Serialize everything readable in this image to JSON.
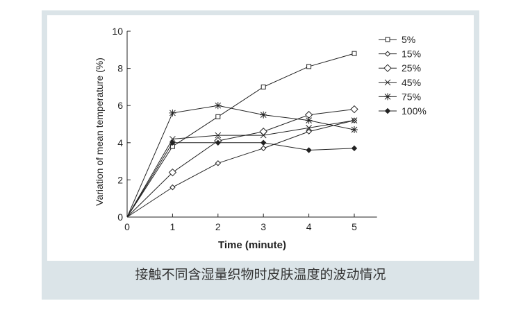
{
  "chart_data": {
    "type": "line",
    "x_label": "Time (minute)",
    "y_label": "Variation of mean temperature (%)",
    "x": [
      0,
      1,
      2,
      3,
      4,
      5
    ],
    "xlim": [
      0,
      5.5
    ],
    "xticks": [
      0,
      1,
      2,
      3,
      4,
      5
    ],
    "ylim": [
      0,
      10
    ],
    "yticks": [
      0,
      2,
      4,
      6,
      8,
      10
    ],
    "series": [
      {
        "name": "5%",
        "color": "#222222",
        "marker": "square",
        "values": [
          0,
          3.8,
          5.4,
          7.0,
          8.1,
          8.8
        ]
      },
      {
        "name": "15%",
        "color": "#222222",
        "marker": "diamond-small",
        "values": [
          0,
          1.6,
          2.9,
          3.7,
          4.6,
          5.2
        ]
      },
      {
        "name": "25%",
        "color": "#222222",
        "marker": "diamond",
        "values": [
          0,
          2.4,
          4.1,
          4.6,
          5.5,
          5.8
        ]
      },
      {
        "name": "45%",
        "color": "#222222",
        "marker": "x",
        "values": [
          0,
          4.2,
          4.4,
          4.4,
          4.8,
          5.2
        ]
      },
      {
        "name": "75%",
        "color": "#222222",
        "marker": "star",
        "values": [
          0,
          5.6,
          6.0,
          5.5,
          5.2,
          4.7
        ]
      },
      {
        "name": "100%",
        "color": "#222222",
        "marker": "diamond-filled",
        "values": [
          0,
          4.0,
          4.0,
          4.0,
          3.6,
          3.7
        ]
      }
    ]
  },
  "caption": "接触不同含湿量织物时皮肤温度的波动情况"
}
